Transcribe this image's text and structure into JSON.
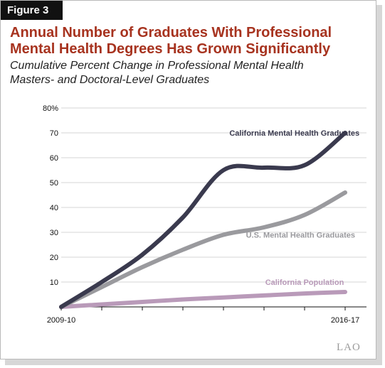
{
  "figure_label": "Figure 3",
  "title_lines": [
    "Annual Number of Graduates With Professional",
    "Mental Health Degrees Has Grown Significantly"
  ],
  "subtitle_lines": [
    "Cumulative Percent Change in Professional Mental Health",
    "Masters- and Doctoral-Level Graduates"
  ],
  "logo_text": "LAO",
  "colors": {
    "title": "#a7331f",
    "california_grads": "#3a3a4e",
    "us_grads": "#9a9a9e",
    "california_population": "#b99ab9",
    "grid": "#d4d4d4"
  },
  "chart_data": {
    "type": "line",
    "x_positions": [
      0,
      1,
      2,
      3,
      4,
      5,
      6,
      7
    ],
    "x_tick_labels": [
      {
        "pos": 0,
        "label": "2009-10"
      },
      {
        "pos": 7,
        "label": "2016-17"
      }
    ],
    "y_ticks": [
      {
        "value": 80,
        "label": "80%"
      },
      {
        "value": 70,
        "label": "70"
      },
      {
        "value": 60,
        "label": "60"
      },
      {
        "value": 50,
        "label": "50"
      },
      {
        "value": 40,
        "label": "40"
      },
      {
        "value": 30,
        "label": "30"
      },
      {
        "value": 20,
        "label": "20"
      },
      {
        "value": 10,
        "label": "10"
      }
    ],
    "ylim": [
      0,
      80
    ],
    "xlim": [
      0,
      7
    ],
    "grid": true,
    "series": [
      {
        "key": "california_grads",
        "name": "California Mental Health Graduates",
        "values": [
          0,
          10,
          21,
          36,
          55,
          56,
          57,
          70
        ]
      },
      {
        "key": "us_grads",
        "name": "U.S. Mental Health Graduates",
        "values": [
          0,
          8,
          16,
          23,
          29,
          32,
          37,
          46
        ]
      },
      {
        "key": "california_population",
        "name": "California Population",
        "values": [
          0,
          1,
          2,
          3,
          3.8,
          4.6,
          5.4,
          6
        ]
      }
    ]
  }
}
